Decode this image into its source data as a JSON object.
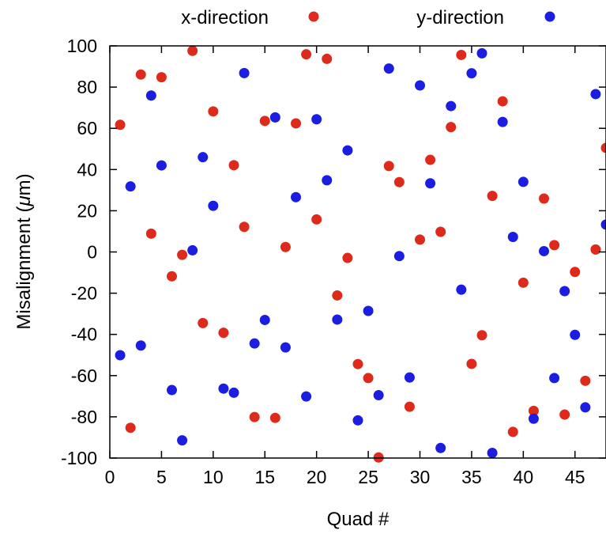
{
  "chart_data": {
    "type": "scatter",
    "xlabel": "Quad #",
    "ylabel": "Misalignment (μm)",
    "xlim": [
      0,
      48
    ],
    "ylim": [
      -100,
      100
    ],
    "xticks": [
      0,
      5,
      10,
      15,
      20,
      25,
      30,
      35,
      40,
      45
    ],
    "yticks": [
      -100,
      -80,
      -60,
      -40,
      -20,
      0,
      20,
      40,
      60,
      80,
      100
    ],
    "grid": false,
    "legend_position": "top",
    "series": [
      {
        "name": "x-direction",
        "color": "#dd2a1b",
        "points": [
          [
            1,
            61.7
          ],
          [
            2,
            -85.3
          ],
          [
            3,
            86.1
          ],
          [
            4,
            8.9
          ],
          [
            5,
            84.8
          ],
          [
            6,
            -11.8
          ],
          [
            7,
            -1.4
          ],
          [
            8,
            97.6
          ],
          [
            9,
            -34.5
          ],
          [
            10,
            68.2
          ],
          [
            11,
            -39.2
          ],
          [
            12,
            42.1
          ],
          [
            13,
            12.2
          ],
          [
            14,
            -80.1
          ],
          [
            15,
            63.6
          ],
          [
            16,
            -80.5
          ],
          [
            17,
            2.4
          ],
          [
            18,
            62.4
          ],
          [
            19,
            95.9
          ],
          [
            20,
            15.8
          ],
          [
            21,
            93.7
          ],
          [
            22,
            -21.1
          ],
          [
            23,
            -2.9
          ],
          [
            24,
            -54.4
          ],
          [
            25,
            -61.2
          ],
          [
            26,
            -99.7
          ],
          [
            27,
            41.7
          ],
          [
            28,
            33.9
          ],
          [
            29,
            -75.1
          ],
          [
            30,
            6.0
          ],
          [
            31,
            44.7
          ],
          [
            32,
            9.8
          ],
          [
            33,
            60.6
          ],
          [
            34,
            95.6
          ],
          [
            35,
            -54.3
          ],
          [
            36,
            -40.4
          ],
          [
            37,
            27.2
          ],
          [
            38,
            73.1
          ],
          [
            39,
            -87.3
          ],
          [
            40,
            -14.9
          ],
          [
            41,
            -77.1
          ],
          [
            42,
            25.9
          ],
          [
            43,
            3.3
          ],
          [
            44,
            -78.9
          ],
          [
            45,
            -9.7
          ],
          [
            46,
            -62.5
          ],
          [
            47,
            1.2
          ],
          [
            48,
            50.5
          ]
        ]
      },
      {
        "name": "y-direction",
        "color": "#1b1de0",
        "points": [
          [
            1,
            -50.1
          ],
          [
            2,
            31.8
          ],
          [
            3,
            -45.4
          ],
          [
            4,
            75.9
          ],
          [
            5,
            42.0
          ],
          [
            6,
            -67.0
          ],
          [
            7,
            -91.4
          ],
          [
            8,
            0.8
          ],
          [
            9,
            46.0
          ],
          [
            10,
            22.4
          ],
          [
            11,
            -66.3
          ],
          [
            12,
            -68.3
          ],
          [
            13,
            86.8
          ],
          [
            14,
            -44.4
          ],
          [
            15,
            -33.0
          ],
          [
            16,
            65.3
          ],
          [
            17,
            -46.3
          ],
          [
            18,
            26.6
          ],
          [
            19,
            -70.1
          ],
          [
            20,
            64.4
          ],
          [
            21,
            34.8
          ],
          [
            22,
            -32.8
          ],
          [
            23,
            49.3
          ],
          [
            24,
            -81.7
          ],
          [
            25,
            -28.6
          ],
          [
            26,
            -69.5
          ],
          [
            27,
            89.0
          ],
          [
            28,
            -2.0
          ],
          [
            29,
            -60.9
          ],
          [
            30,
            80.8
          ],
          [
            31,
            33.3
          ],
          [
            32,
            -95.1
          ],
          [
            33,
            70.8
          ],
          [
            34,
            -18.3
          ],
          [
            35,
            86.7
          ],
          [
            36,
            96.4
          ],
          [
            37,
            -97.5
          ],
          [
            38,
            63.1
          ],
          [
            39,
            7.3
          ],
          [
            40,
            34.0
          ],
          [
            41,
            -80.9
          ],
          [
            42,
            0.4
          ],
          [
            43,
            -61.2
          ],
          [
            44,
            -19.0
          ],
          [
            45,
            -40.2
          ],
          [
            46,
            -75.4
          ],
          [
            47,
            76.6
          ],
          [
            48,
            13.3
          ]
        ]
      }
    ]
  }
}
